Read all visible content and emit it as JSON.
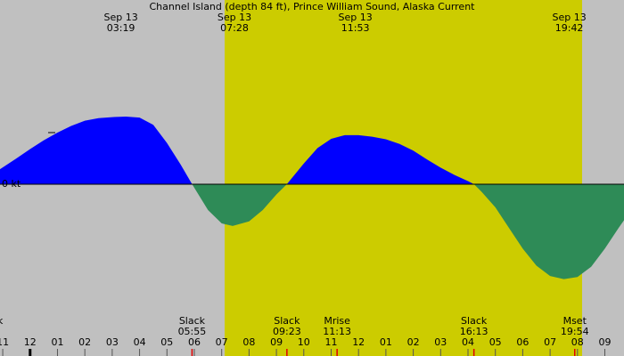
{
  "chart_data": {
    "type": "area",
    "title": "Channel Island (depth 84 ft), Prince William Sound, Alaska Current",
    "top_labels": [
      {
        "date": "Sep 13",
        "time": "03:19"
      },
      {
        "date": "Sep 13",
        "time": "07:28"
      },
      {
        "date": "Sep 13",
        "time": "11:53"
      },
      {
        "date": "Sep 13",
        "time": "19:42"
      }
    ],
    "events": [
      {
        "label": "Slack",
        "time": "05:55"
      },
      {
        "label": "Slack",
        "time": "09:23"
      },
      {
        "label": "Mrise",
        "time": "11:13"
      },
      {
        "label": "Slack",
        "time": "16:13"
      },
      {
        "label": "Mset",
        "time": "19:54"
      }
    ],
    "edge_label": "k",
    "x": [
      -1.1,
      -0.5,
      0,
      0.5,
      1,
      1.5,
      2,
      2.5,
      3,
      3.5,
      4,
      4.5,
      5,
      5.5,
      5.92,
      6.5,
      7,
      7.4,
      8,
      8.5,
      9,
      9.38,
      10,
      10.5,
      11,
      11.5,
      12,
      12.5,
      13,
      13.5,
      14,
      14.5,
      15,
      15.5,
      16,
      16.22,
      16.5,
      17,
      17.5,
      18,
      18.5,
      19,
      19.5,
      20,
      20.5,
      21,
      21.5,
      21.7
    ],
    "values": [
      0.29,
      0.5,
      0.68,
      0.85,
      1.0,
      1.13,
      1.23,
      1.28,
      1.3,
      1.31,
      1.29,
      1.15,
      0.8,
      0.38,
      0,
      -0.5,
      -0.76,
      -0.81,
      -0.72,
      -0.5,
      -0.2,
      0,
      0.4,
      0.7,
      0.88,
      0.95,
      0.95,
      0.92,
      0.87,
      0.78,
      0.65,
      0.48,
      0.32,
      0.18,
      0.06,
      0,
      -0.15,
      -0.45,
      -0.85,
      -1.25,
      -1.58,
      -1.78,
      -1.84,
      -1.8,
      -1.6,
      -1.25,
      -0.85,
      -0.7
    ],
    "flood_color": "#0000ff",
    "ebb_color": "#2e8b57",
    "xlim": [
      -1.1,
      21.7
    ],
    "ylim": [
      -3.33,
      3.57
    ],
    "xticks": [
      {
        "value": -1,
        "label": "11"
      },
      {
        "value": 0,
        "label": "12"
      },
      {
        "value": 1,
        "label": "01"
      },
      {
        "value": 2,
        "label": "02"
      },
      {
        "value": 3,
        "label": "03"
      },
      {
        "value": 4,
        "label": "04"
      },
      {
        "value": 5,
        "label": "05"
      },
      {
        "value": 6,
        "label": "06"
      },
      {
        "value": 7,
        "label": "07"
      },
      {
        "value": 8,
        "label": "08"
      },
      {
        "value": 9,
        "label": "09"
      },
      {
        "value": 10,
        "label": "10"
      },
      {
        "value": 11,
        "label": "11"
      },
      {
        "value": 12,
        "label": "12"
      },
      {
        "value": 13,
        "label": "01"
      },
      {
        "value": 14,
        "label": "02"
      },
      {
        "value": 15,
        "label": "03"
      },
      {
        "value": 16,
        "label": "04"
      },
      {
        "value": 17,
        "label": "05"
      },
      {
        "value": 18,
        "label": "06"
      },
      {
        "value": 19,
        "label": "07"
      },
      {
        "value": 20,
        "label": "08"
      },
      {
        "value": 21,
        "label": "09"
      }
    ],
    "yticks": [
      {
        "value": 0,
        "label": "0 kt"
      },
      {
        "value": 1,
        "label": "+"
      }
    ]
  }
}
